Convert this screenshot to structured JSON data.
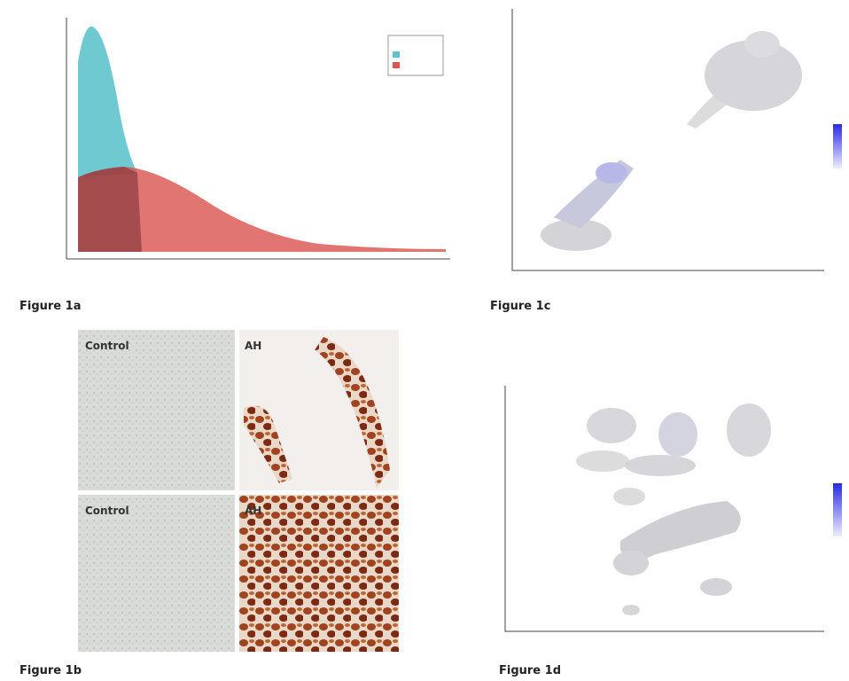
{
  "figure_labels": [
    "Figure 1a",
    "Figure 1c",
    "Figure 1b",
    "Figure 1d"
  ],
  "micrograph_labels": [
    "Control",
    "AH",
    "Control",
    "AH"
  ]
}
